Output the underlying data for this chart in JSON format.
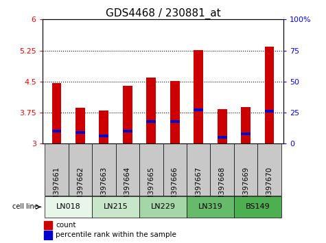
{
  "title": "GDS4468 / 230881_at",
  "samples": [
    "GSM397661",
    "GSM397662",
    "GSM397663",
    "GSM397664",
    "GSM397665",
    "GSM397666",
    "GSM397667",
    "GSM397668",
    "GSM397669",
    "GSM397670"
  ],
  "count_values": [
    4.47,
    3.87,
    3.8,
    4.4,
    4.6,
    4.52,
    5.26,
    3.83,
    3.88,
    5.35
  ],
  "percentile_values": [
    10,
    9,
    6,
    10,
    18,
    18,
    27,
    5,
    8,
    26
  ],
  "ylim_left": [
    3.0,
    6.0
  ],
  "ylim_right": [
    0,
    100
  ],
  "yticks_left": [
    3.0,
    3.75,
    4.5,
    5.25,
    6.0
  ],
  "ytick_labels_left": [
    "3",
    "3.75",
    "4.5",
    "5.25",
    "6"
  ],
  "yticks_right": [
    0,
    25,
    50,
    75,
    100
  ],
  "ytick_labels_right": [
    "0",
    "25",
    "50",
    "75",
    "100%"
  ],
  "hlines": [
    3.75,
    4.5,
    5.25
  ],
  "bar_bottom": 3.0,
  "bar_color": "#cc0000",
  "percentile_color": "#0000cc",
  "cell_line_defs": [
    {
      "name": "LN018",
      "indices": [
        0,
        1
      ],
      "color": "#e8f5e9"
    },
    {
      "name": "LN215",
      "indices": [
        2,
        3
      ],
      "color": "#c8e6c9"
    },
    {
      "name": "LN229",
      "indices": [
        4,
        5
      ],
      "color": "#a5d6a7"
    },
    {
      "name": "LN319",
      "indices": [
        6,
        7
      ],
      "color": "#66bb6a"
    },
    {
      "name": "BS149",
      "indices": [
        8,
        9
      ],
      "color": "#4caf50"
    }
  ],
  "xlabel_area_color": "#c8c8c8",
  "bar_width": 0.4,
  "title_fontsize": 11,
  "tick_fontsize": 8,
  "label_fontsize": 7.5,
  "cell_fontsize": 8
}
